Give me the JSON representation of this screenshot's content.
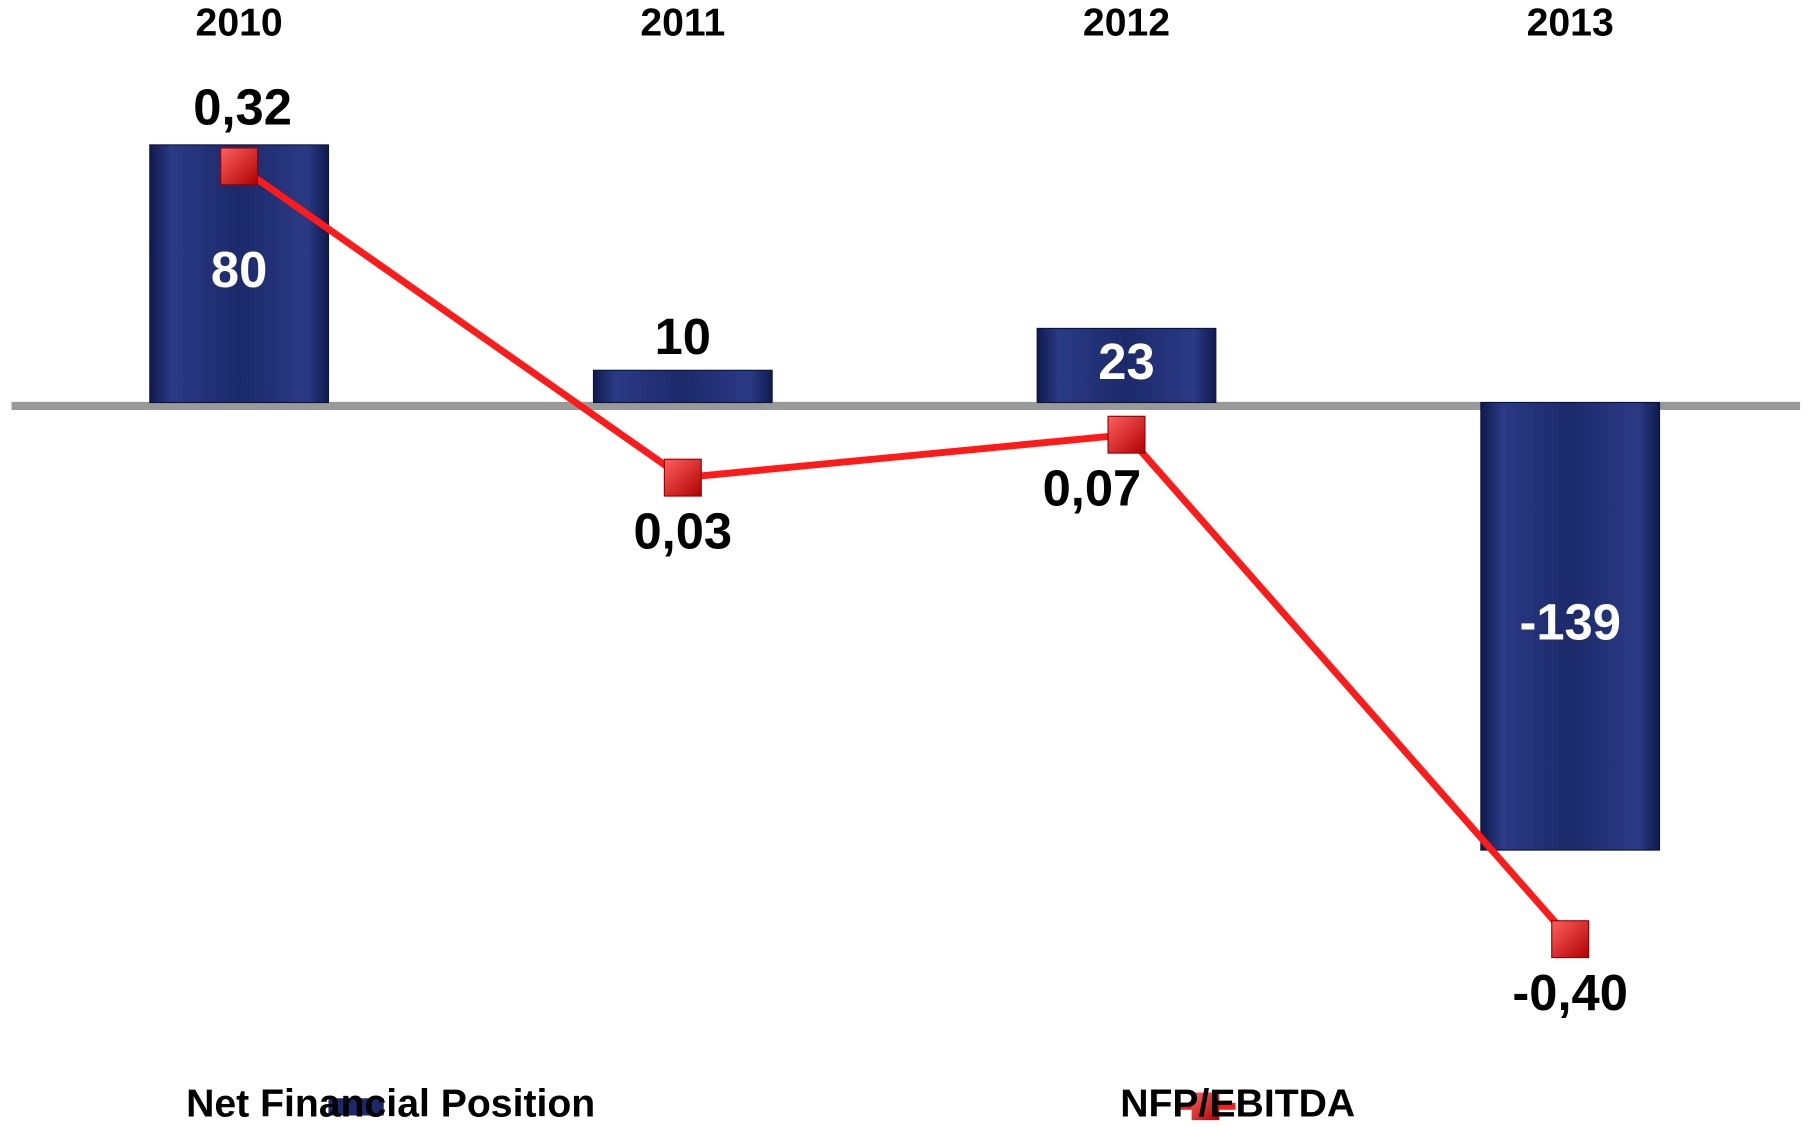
{
  "chart_data": {
    "type": "bar_line",
    "categories": [
      "2010",
      "2011",
      "2012",
      "2013"
    ],
    "series": [
      {
        "name": "Net Financial Position",
        "type": "bar",
        "color": "#1c2a6b",
        "values": [
          80,
          10,
          23,
          -139
        ]
      },
      {
        "name": "NFP/EBITDA",
        "type": "line",
        "axis": "y2",
        "color": "#ff1a1a",
        "values": [
          0.32,
          0.03,
          0.07,
          -0.4
        ],
        "value_labels": [
          "0,32",
          "0,03",
          "0,07",
          "-0,40"
        ]
      }
    ],
    "ylim": [
      -200,
      100
    ],
    "y2lim": [
      -0.5,
      0.4
    ],
    "grid": false,
    "legend": "bottom"
  }
}
